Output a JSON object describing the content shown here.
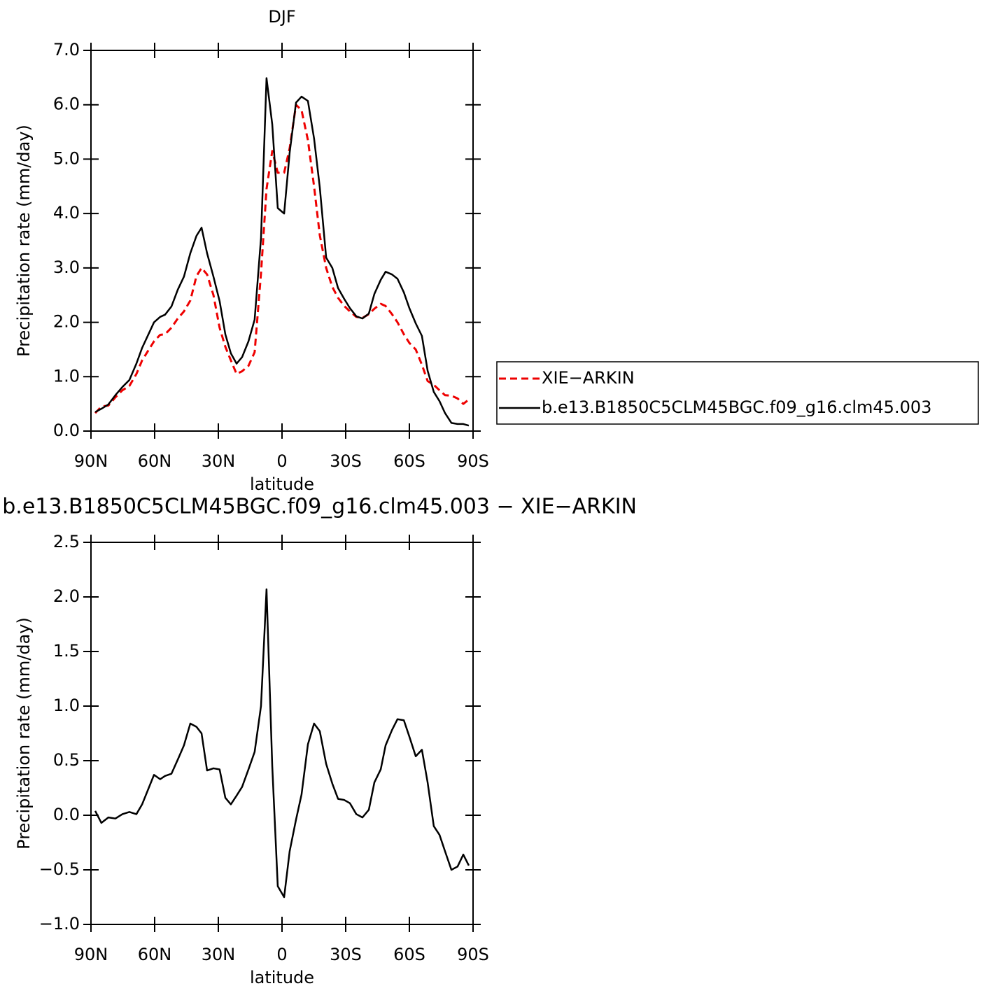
{
  "chart_data": [
    {
      "type": "line",
      "title": "DJF",
      "xlabel": "latitude",
      "ylabel": "Precipitation rate (mm/day)",
      "x": [
        88.0,
        85.1,
        81.8,
        78.5,
        75.2,
        71.9,
        68.6,
        65.9,
        60.3,
        57.4,
        55.1,
        52.1,
        49.1,
        46.2,
        43.2,
        40.3,
        37.9,
        35.3,
        32.3,
        29.4,
        26.7,
        24.1,
        21.4,
        18.8,
        15.8,
        12.9,
        9.9,
        7.3,
        4.6,
        2.0,
        -1.0,
        -3.6,
        -6.6,
        -9.2,
        -12.2,
        -15.1,
        -17.8,
        -20.8,
        -23.7,
        -26.4,
        -29.3,
        -32.0,
        -35.0,
        -37.9,
        -40.9,
        -43.5,
        -46.5,
        -48.8,
        -51.8,
        -54.4,
        -57.4,
        -60.0,
        -63.0,
        -65.9,
        -68.6,
        -71.5,
        -74.2,
        -76.8,
        -79.8,
        -82.7,
        -85.4,
        -88.0
      ],
      "series": [
        {
          "name": "XIE−ARKIN",
          "color": "#ee0000",
          "linestyle": "dashed",
          "values": [
            0.33,
            0.45,
            0.47,
            0.62,
            0.75,
            0.83,
            1.05,
            1.3,
            1.65,
            1.77,
            1.78,
            1.9,
            2.07,
            2.2,
            2.4,
            2.85,
            3.0,
            2.88,
            2.5,
            1.9,
            1.55,
            1.3,
            1.05,
            1.1,
            1.2,
            1.45,
            2.9,
            4.45,
            5.15,
            4.75,
            4.75,
            5.2,
            6.0,
            5.9,
            5.35,
            4.5,
            3.6,
            3.0,
            2.65,
            2.45,
            2.3,
            2.2,
            2.1,
            2.08,
            2.15,
            2.25,
            2.34,
            2.3,
            2.15,
            2.0,
            1.78,
            1.62,
            1.5,
            1.22,
            0.92,
            0.85,
            0.75,
            0.66,
            0.65,
            0.6,
            0.5,
            0.58
          ]
        },
        {
          "name": "b.e13.B1850C5CLM45BGC.f09_g16.clm45.003",
          "color": "#000000",
          "linestyle": "solid",
          "values": [
            0.35,
            0.41,
            0.49,
            0.66,
            0.81,
            0.94,
            1.24,
            1.53,
            2.0,
            2.1,
            2.14,
            2.29,
            2.6,
            2.84,
            3.27,
            3.59,
            3.74,
            3.27,
            2.84,
            2.39,
            1.78,
            1.43,
            1.24,
            1.36,
            1.65,
            2.05,
            3.55,
            6.49,
            5.64,
            4.1,
            4.0,
            5.12,
            6.04,
            6.15,
            6.07,
            5.38,
            4.48,
            3.19,
            3.0,
            2.63,
            2.43,
            2.26,
            2.11,
            2.07,
            2.16,
            2.52,
            2.78,
            2.93,
            2.88,
            2.8,
            2.55,
            2.26,
            1.98,
            1.75,
            1.11,
            0.72,
            0.55,
            0.33,
            0.15,
            0.13,
            0.13,
            0.1
          ]
        }
      ],
      "xlim": [
        90,
        -90
      ],
      "xticks": [
        {
          "value": 90,
          "label": "90N"
        },
        {
          "value": 60,
          "label": "60N"
        },
        {
          "value": 30,
          "label": "30N"
        },
        0,
        {
          "value": -30,
          "label": "30S"
        },
        {
          "value": -60,
          "label": "60S"
        },
        {
          "value": -90,
          "label": "90S"
        }
      ],
      "ylim": [
        0,
        7
      ],
      "yticks": [
        {
          "value": 0,
          "label": "0.0"
        },
        {
          "value": 1,
          "label": "1.0"
        },
        {
          "value": 2,
          "label": "2.0"
        },
        {
          "value": 3,
          "label": "3.0"
        },
        {
          "value": 4,
          "label": "4.0"
        },
        {
          "value": 5,
          "label": "5.0"
        },
        {
          "value": 6,
          "label": "6.0"
        },
        {
          "value": 7,
          "label": "7.0"
        }
      ],
      "legend": "outside-right"
    },
    {
      "type": "line",
      "title": "b.e13.B1850C5CLM45BGC.f09_g16.clm45.003 − XIE−ARKIN",
      "xlabel": "latitude",
      "ylabel": "Precipitation rate (mm/day)",
      "x": [
        88.0,
        85.1,
        81.8,
        78.5,
        75.2,
        71.9,
        68.6,
        65.9,
        60.3,
        57.4,
        55.1,
        52.1,
        49.1,
        46.2,
        43.2,
        40.3,
        37.9,
        35.3,
        32.3,
        29.4,
        26.7,
        24.1,
        21.4,
        18.8,
        15.8,
        12.9,
        9.9,
        7.3,
        4.6,
        2.0,
        -1.0,
        -3.6,
        -6.6,
        -9.2,
        -12.2,
        -15.1,
        -17.8,
        -20.8,
        -23.7,
        -26.4,
        -29.3,
        -32.0,
        -35.0,
        -37.9,
        -40.9,
        -43.5,
        -46.5,
        -48.8,
        -51.8,
        -54.4,
        -57.4,
        -60.0,
        -63.0,
        -65.9,
        -68.6,
        -71.5,
        -74.2,
        -76.8,
        -79.8,
        -82.7,
        -85.4,
        -88.0
      ],
      "series": [
        {
          "color": "#000000",
          "linestyle": "solid",
          "values": [
            0.04,
            -0.07,
            -0.02,
            -0.03,
            0.01,
            0.03,
            0.01,
            0.1,
            0.37,
            0.33,
            0.36,
            0.38,
            0.51,
            0.64,
            0.84,
            0.81,
            0.75,
            0.41,
            0.43,
            0.42,
            0.16,
            0.1,
            0.18,
            0.26,
            0.42,
            0.58,
            1.0,
            2.07,
            0.45,
            -0.65,
            -0.75,
            -0.33,
            -0.04,
            0.19,
            0.65,
            0.84,
            0.77,
            0.47,
            0.29,
            0.15,
            0.14,
            0.11,
            0.01,
            -0.02,
            0.05,
            0.3,
            0.42,
            0.64,
            0.78,
            0.88,
            0.87,
            0.72,
            0.54,
            0.6,
            0.3,
            -0.1,
            -0.18,
            -0.33,
            -0.5,
            -0.47,
            -0.36,
            -0.46
          ]
        }
      ],
      "xlim": [
        90,
        -90
      ],
      "xticks": [
        {
          "value": 90,
          "label": "90N"
        },
        {
          "value": 60,
          "label": "60N"
        },
        {
          "value": 30,
          "label": "30N"
        },
        0,
        {
          "value": -30,
          "label": "30S"
        },
        {
          "value": -60,
          "label": "60S"
        },
        {
          "value": -90,
          "label": "90S"
        }
      ],
      "ylim": [
        -1,
        2.5
      ],
      "yticks": [
        {
          "value": -1,
          "label": "−1.0"
        },
        {
          "value": -0.5,
          "label": "−0.5"
        },
        {
          "value": 0,
          "label": "0.0"
        },
        0.5,
        {
          "value": 1,
          "label": "1.0"
        },
        1.5,
        {
          "value": 2,
          "label": "2.0"
        },
        2.5
      ]
    }
  ]
}
